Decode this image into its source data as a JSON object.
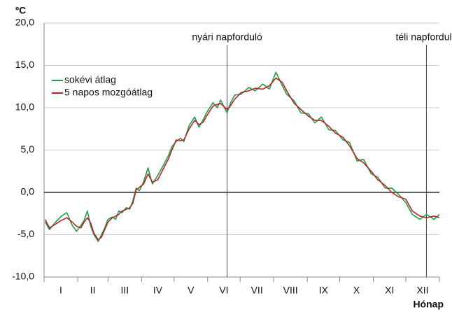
{
  "chart_data": {
    "type": "line",
    "y_label": "ºC",
    "x_label": "Hónap",
    "xlim": [
      0,
      365
    ],
    "ylim": [
      -10,
      20
    ],
    "yticks": [
      {
        "value": -10,
        "label": "-10,0"
      },
      {
        "value": -5,
        "label": "-5,0"
      },
      {
        "value": 0,
        "label": "0,0"
      },
      {
        "value": 5,
        "label": "5,0"
      },
      {
        "value": 10,
        "label": "10,0"
      },
      {
        "value": 15,
        "label": "15,0"
      },
      {
        "value": 20,
        "label": "20,0"
      }
    ],
    "month_bounds": [
      0,
      31,
      59,
      90,
      120,
      151,
      181,
      212,
      243,
      273,
      304,
      334,
      365
    ],
    "months": [
      "I",
      "II",
      "III",
      "IV",
      "V",
      "VI",
      "VII",
      "VIII",
      "IX",
      "X",
      "XI",
      "XII"
    ],
    "grid": true,
    "legend": "upper left",
    "annotations": [
      {
        "x": 169,
        "text": "nyári napforduló"
      },
      {
        "x": 353,
        "text": "téli napforduló"
      }
    ],
    "x": [
      1,
      5,
      10,
      16,
      21,
      26,
      30,
      34,
      37,
      40,
      43,
      46,
      50,
      53,
      56,
      59,
      63,
      66,
      69,
      72,
      76,
      79,
      82,
      85,
      88,
      92,
      96,
      100,
      105,
      111,
      115,
      118,
      122,
      126,
      129,
      134,
      139,
      143,
      147,
      150,
      156,
      160,
      163,
      169,
      172,
      176,
      182,
      189,
      195,
      202,
      208,
      214,
      220,
      224,
      231,
      237,
      244,
      250,
      256,
      263,
      269,
      276,
      282,
      289,
      295,
      302,
      308,
      315,
      321,
      327,
      334,
      340,
      347,
      353,
      360,
      365
    ],
    "series": [
      {
        "name": "sokévi átlag",
        "color": "#1f9e45",
        "values": [
          -3.5,
          -4.4,
          -3.6,
          -2.8,
          -2.4,
          -3.9,
          -4.6,
          -3.9,
          -3.3,
          -2.2,
          -4.0,
          -5.0,
          -5.8,
          -5.0,
          -4.2,
          -3.2,
          -2.9,
          -3.2,
          -2.2,
          -2.4,
          -1.8,
          -2.0,
          -1.0,
          0.5,
          0.2,
          1.3,
          2.9,
          1.0,
          2.0,
          3.4,
          4.4,
          5.4,
          6.0,
          6.4,
          6.0,
          7.9,
          8.9,
          7.7,
          8.6,
          9.4,
          10.6,
          10.0,
          10.9,
          9.4,
          10.5,
          11.5,
          11.6,
          12.4,
          12.0,
          12.8,
          12.2,
          14.2,
          12.6,
          11.6,
          10.8,
          9.4,
          9.3,
          8.2,
          8.9,
          7.4,
          7.3,
          6.2,
          5.9,
          3.7,
          3.9,
          2.2,
          1.8,
          0.5,
          0.5,
          -0.2,
          -1.2,
          -2.6,
          -3.2,
          -2.6,
          -3.2,
          -2.6
        ]
      },
      {
        "name": "5 napos mozgóátlag",
        "color": "#b3272b",
        "values": [
          -3.2,
          -4.2,
          -3.8,
          -3.3,
          -3.0,
          -3.5,
          -4.0,
          -4.2,
          -3.5,
          -3.0,
          -3.6,
          -4.8,
          -5.6,
          -5.3,
          -4.4,
          -3.5,
          -3.0,
          -2.8,
          -2.6,
          -2.2,
          -2.0,
          -1.8,
          -1.3,
          0.3,
          0.6,
          1.0,
          2.2,
          1.2,
          1.5,
          3.0,
          4.0,
          5.0,
          6.2,
          6.1,
          6.2,
          7.5,
          8.5,
          8.0,
          8.3,
          9.0,
          10.2,
          10.4,
          10.5,
          9.8,
          10.2,
          11.0,
          11.8,
          12.0,
          12.3,
          12.2,
          12.6,
          13.5,
          13.0,
          12.0,
          10.5,
          9.8,
          9.0,
          8.5,
          8.5,
          7.8,
          7.0,
          6.5,
          5.5,
          4.0,
          3.5,
          2.5,
          1.5,
          0.8,
          0.0,
          -0.5,
          -0.8,
          -2.2,
          -2.8,
          -3.0,
          -2.8,
          -3.0
        ]
      }
    ]
  }
}
